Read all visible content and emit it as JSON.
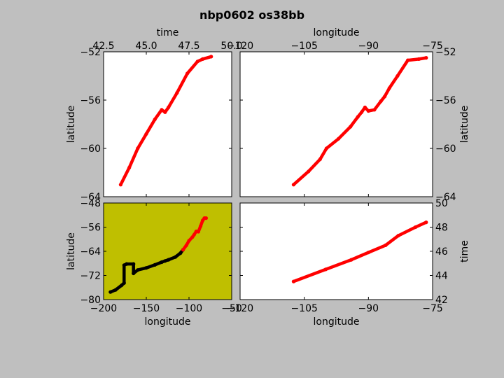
{
  "figure": {
    "title": "nbp0602 os38bb",
    "background": "#bfbfbf",
    "track_color": "#ff0000",
    "context_track_color": "#000000",
    "map_background": "#bfbf00"
  },
  "chart_data": [
    {
      "id": "time-vs-latitude",
      "type": "line",
      "xlabel": "time",
      "xlabel_position": "top",
      "ylabel": "latitude",
      "ylabel_position": "left",
      "xlim": [
        42.5,
        50.0
      ],
      "ylim": [
        -64,
        -52
      ],
      "xticks": [
        "42.5",
        "45.0",
        "47.5",
        "50.0"
      ],
      "yticks": [
        "−64",
        "−60",
        "−56",
        "−52"
      ],
      "grid": false,
      "series": [
        {
          "color": "#ff0000",
          "x": [
            43.5,
            44.0,
            44.5,
            45.0,
            45.5,
            45.9,
            46.1,
            46.3,
            46.8,
            47.4,
            48.0,
            48.3,
            48.8
          ],
          "y": [
            -63.0,
            -61.6,
            -60.0,
            -58.8,
            -57.6,
            -56.8,
            -57.0,
            -56.6,
            -55.4,
            -53.8,
            -52.8,
            -52.6,
            -52.4
          ]
        }
      ]
    },
    {
      "id": "longitude-vs-latitude",
      "type": "line",
      "xlabel": "longitude",
      "xlabel_position": "top",
      "ylabel": "latitude",
      "ylabel_position": "right",
      "xlim": [
        -120,
        -75
      ],
      "ylim": [
        -64,
        -52
      ],
      "xticks": [
        "−120",
        "−105",
        "−90",
        "−75"
      ],
      "yticks": [
        "−64",
        "−60",
        "−56",
        "−52"
      ],
      "grid": false,
      "series": [
        {
          "color": "#ff0000",
          "x": [
            -107.5,
            -104,
            -101.3,
            -99.8,
            -97,
            -94.2,
            -92.5,
            -91.6,
            -90.8,
            -90.0,
            -88.6,
            -87.1,
            -86.2,
            -85.1,
            -83.2,
            -80.8,
            -78.2,
            -76.5
          ],
          "y": [
            -63.0,
            -61.9,
            -60.9,
            -60.0,
            -59.2,
            -58.2,
            -57.4,
            -57.0,
            -56.6,
            -56.9,
            -56.8,
            -56.1,
            -55.7,
            -55.0,
            -54.0,
            -52.7,
            -52.6,
            -52.5
          ]
        }
      ]
    },
    {
      "id": "longitude-vs-latitude-map",
      "type": "line",
      "xlabel": "longitude",
      "xlabel_position": "bottom",
      "ylabel": "latitude",
      "ylabel_position": "left",
      "xlim": [
        -200,
        -50
      ],
      "ylim": [
        -80,
        -48
      ],
      "xticks": [
        "−200",
        "−150",
        "−100",
        "−50"
      ],
      "yticks": [
        "−80",
        "−72",
        "−64",
        "−56",
        "−48"
      ],
      "grid": false,
      "background": "#bfbf00",
      "series": [
        {
          "color": "#000000",
          "x": [
            -192,
            -186,
            -179,
            -176,
            -176,
            -173,
            -165,
            -165,
            -160,
            -150,
            -140,
            -132,
            -128,
            -124,
            -116,
            -110,
            -107
          ],
          "y": [
            -77.5,
            -76.8,
            -75.3,
            -74.5,
            -68.6,
            -68.2,
            -68.2,
            -71.3,
            -70.2,
            -69.5,
            -68.5,
            -67.6,
            -67.2,
            -66.8,
            -65.9,
            -64.6,
            -63.5
          ]
        },
        {
          "color": "#ff0000",
          "x": [
            -107,
            -103,
            -100,
            -96,
            -94,
            -91.5,
            -89,
            -86.5,
            -84,
            -82,
            -80
          ],
          "y": [
            -63.5,
            -62.0,
            -60.5,
            -59.3,
            -58.5,
            -57.4,
            -57.5,
            -55.7,
            -53.8,
            -53.0,
            -53.0
          ]
        }
      ]
    },
    {
      "id": "longitude-vs-time",
      "type": "line",
      "xlabel": "longitude",
      "xlabel_position": "bottom",
      "ylabel": "time",
      "ylabel_position": "right",
      "xlim": [
        -120,
        -75
      ],
      "ylim": [
        42,
        50
      ],
      "xticks": [
        "−120",
        "−105",
        "−90",
        "−75"
      ],
      "yticks": [
        "42",
        "44",
        "46",
        "48",
        "50"
      ],
      "grid": false,
      "series": [
        {
          "color": "#ff0000",
          "x": [
            -107.5,
            -100,
            -94,
            -90,
            -86,
            -83,
            -79,
            -76.5
          ],
          "y": [
            43.5,
            44.5,
            45.3,
            45.9,
            46.5,
            47.3,
            48.0,
            48.4
          ]
        }
      ]
    }
  ]
}
